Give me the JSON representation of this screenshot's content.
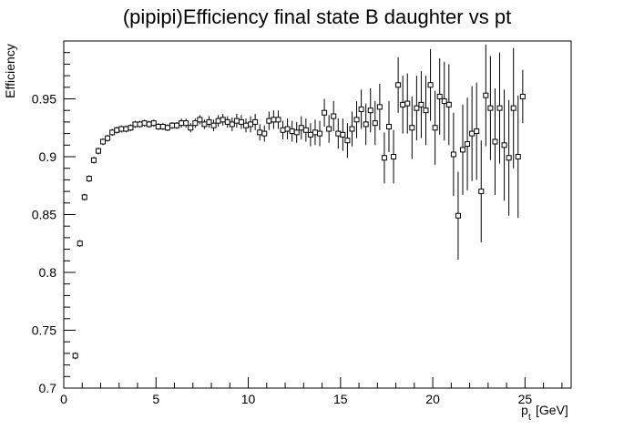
{
  "chart_data": {
    "type": "scatter",
    "title": "(pipipi)Efficiency final state B daughter vs pt",
    "xlabel": "p",
    "xlabel_sub": "t",
    "xlabel_unit": "[GeV]",
    "ylabel": "Efficiency",
    "xlim": [
      0,
      27.5
    ],
    "ylim": [
      0.7,
      1.0
    ],
    "x_ticks": [
      0,
      5,
      10,
      15,
      20,
      25
    ],
    "x_tick_labels": [
      "0",
      "5",
      "10",
      "15",
      "20",
      "25"
    ],
    "y_ticks": [
      0.7,
      0.75,
      0.8,
      0.85,
      0.9,
      0.95
    ],
    "y_tick_labels": [
      "0.7",
      "0.75",
      "0.8",
      "0.85",
      "0.9",
      "0.95"
    ],
    "grid": false,
    "legend": "none",
    "marker": "open-square-with-error-bars",
    "bin_width": 0.25,
    "series": [
      {
        "x": [
          0.625,
          0.875,
          1.125,
          1.375,
          1.625,
          1.875,
          2.125,
          2.375,
          2.625,
          2.875,
          3.125,
          3.375,
          3.625,
          3.875,
          4.125,
          4.375,
          4.625,
          4.875,
          5.125,
          5.375,
          5.625,
          5.875,
          6.125,
          6.375,
          6.625,
          6.875,
          7.125,
          7.375,
          7.625,
          7.875,
          8.125,
          8.375,
          8.625,
          8.875,
          9.125,
          9.375,
          9.625,
          9.875,
          10.125,
          10.375,
          10.625,
          10.875,
          11.125,
          11.375,
          11.625,
          11.875,
          12.125,
          12.375,
          12.625,
          12.875,
          13.125,
          13.375,
          13.625,
          13.875,
          14.125,
          14.375,
          14.625,
          14.875,
          15.125,
          15.375,
          15.625,
          15.875,
          16.125,
          16.375,
          16.625,
          16.875,
          17.125,
          17.375,
          17.625,
          17.875,
          18.125,
          18.375,
          18.625,
          18.875,
          19.125,
          19.375,
          19.625,
          19.875,
          20.125,
          20.375,
          20.625,
          20.875,
          21.125,
          21.375,
          21.625,
          21.875,
          22.125,
          22.375,
          22.625,
          22.875,
          23.125,
          23.375,
          23.625,
          23.875,
          24.125,
          24.375,
          24.625,
          24.875
        ],
        "y": [
          0.728,
          0.825,
          0.865,
          0.881,
          0.897,
          0.905,
          0.913,
          0.916,
          0.921,
          0.923,
          0.924,
          0.924,
          0.925,
          0.928,
          0.928,
          0.929,
          0.928,
          0.929,
          0.926,
          0.926,
          0.925,
          0.927,
          0.927,
          0.929,
          0.929,
          0.925,
          0.929,
          0.932,
          0.928,
          0.93,
          0.927,
          0.931,
          0.932,
          0.93,
          0.928,
          0.931,
          0.93,
          0.927,
          0.928,
          0.93,
          0.921,
          0.92,
          0.931,
          0.932,
          0.932,
          0.923,
          0.924,
          0.922,
          0.921,
          0.925,
          0.923,
          0.919,
          0.921,
          0.92,
          0.938,
          0.924,
          0.935,
          0.92,
          0.919,
          0.914,
          0.924,
          0.932,
          0.941,
          0.928,
          0.94,
          0.929,
          0.943,
          0.899,
          0.926,
          0.9,
          0.962,
          0.945,
          0.946,
          0.925,
          0.942,
          0.945,
          0.94,
          0.962,
          0.925,
          0.952,
          0.948,
          0.945,
          0.902,
          0.849,
          0.906,
          0.911,
          0.92,
          0.922,
          0.87,
          0.953,
          0.942,
          0.913,
          0.942,
          0.91,
          0.899,
          0.942,
          0.9,
          0.952
        ],
        "err": [
          0.003,
          0.003,
          0.003,
          0.003,
          0.003,
          0.003,
          0.003,
          0.003,
          0.003,
          0.003,
          0.003,
          0.003,
          0.003,
          0.003,
          0.003,
          0.003,
          0.003,
          0.003,
          0.003,
          0.003,
          0.003,
          0.003,
          0.003,
          0.004,
          0.004,
          0.004,
          0.004,
          0.004,
          0.004,
          0.005,
          0.005,
          0.005,
          0.005,
          0.005,
          0.006,
          0.006,
          0.006,
          0.006,
          0.007,
          0.007,
          0.007,
          0.007,
          0.008,
          0.008,
          0.008,
          0.008,
          0.009,
          0.009,
          0.009,
          0.01,
          0.01,
          0.01,
          0.011,
          0.011,
          0.012,
          0.012,
          0.013,
          0.013,
          0.014,
          0.015,
          0.015,
          0.016,
          0.017,
          0.018,
          0.019,
          0.019,
          0.02,
          0.022,
          0.022,
          0.023,
          0.024,
          0.025,
          0.026,
          0.027,
          0.028,
          0.029,
          0.03,
          0.031,
          0.032,
          0.033,
          0.034,
          0.035,
          0.036,
          0.038,
          0.039,
          0.04,
          0.041,
          0.042,
          0.044,
          0.044,
          0.045,
          0.046,
          0.048,
          0.048,
          0.05,
          0.052,
          0.053,
          0.023
        ]
      }
    ]
  }
}
